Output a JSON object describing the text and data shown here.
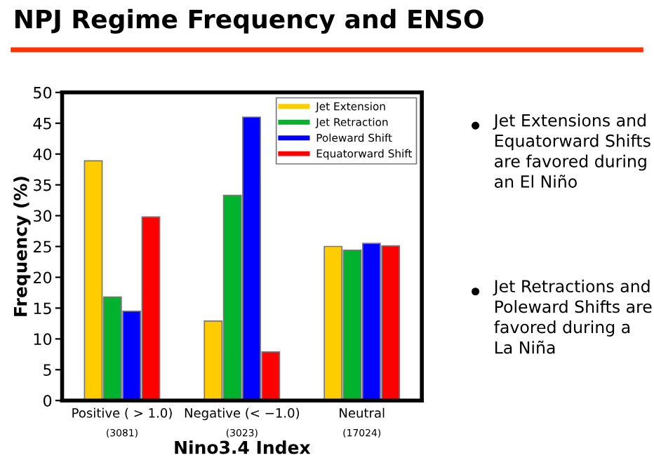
{
  "chart_data": {
    "type": "bar",
    "title": "NPJ Regime Frequency and ENSO",
    "categories": [
      "Positive ( > 1.0)\n(3081)",
      "Negative (< −1.0)\n(3023)",
      "Neutral\n(17024)"
    ],
    "series": [
      {
        "name": "Jet Extension",
        "color": "#ffcc00",
        "values": [
          38.9,
          12.9,
          25.0
        ]
      },
      {
        "name": "Jet Retraction",
        "color": "#00b22d",
        "values": [
          16.8,
          33.3,
          24.4
        ]
      },
      {
        "name": "Poleward Shift",
        "color": "#0000ff",
        "values": [
          14.5,
          46.0,
          25.5
        ]
      },
      {
        "name": "Equatorward Shift",
        "color": "#ff0000",
        "values": [
          29.8,
          7.9,
          25.1
        ]
      }
    ],
    "xlabel": "Nino3.4 Index",
    "ylabel": "Frequency (%)",
    "ylim": [
      0,
      50
    ],
    "yticks": [
      0,
      5,
      10,
      15,
      20,
      25,
      30,
      35,
      40,
      45,
      50
    ],
    "legend": "top right",
    "grid": false,
    "annotations": [
      "Jet Extensions and Equatorward Shifts are favored during an El Niño",
      "Jet Retractions and Poleward Shifts are favored during a La Niña"
    ]
  }
}
